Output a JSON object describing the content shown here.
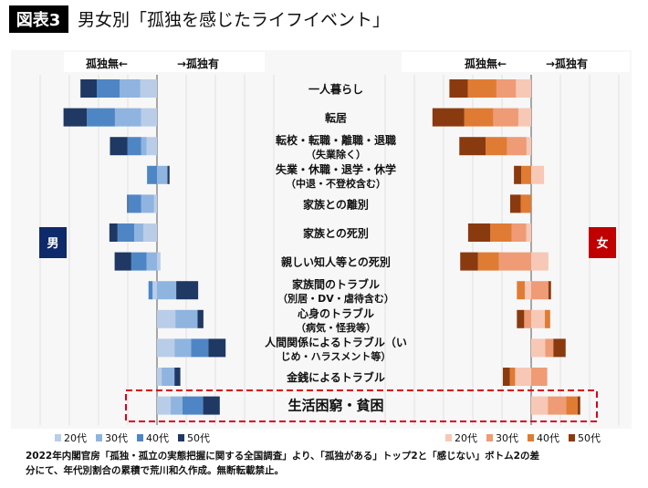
{
  "header": {
    "badge": "図表3",
    "title": "男女別「孤独を感じたライフイベント」"
  },
  "axis_headers": {
    "left": "孤独無←",
    "right": "→孤独有"
  },
  "gender_badges": {
    "male": "男",
    "female": "女"
  },
  "colors": {
    "male": [
      "#b9cde8",
      "#8fb4df",
      "#4e86c5",
      "#1f3864"
    ],
    "female": [
      "#f7c8b5",
      "#ee9b76",
      "#e07b34",
      "#8a3a0f"
    ],
    "male_badge": "#0e2a6b",
    "female_badge": "#c00000",
    "highlight": "#d9001b"
  },
  "footnote": [
    "2022年内閣官房「孤独・孤立の実態把握に関する全国調査」より、「孤独がある」トップ2と「感じない」ボトム2の差",
    "分にて、年代別割合の累積で荒川和久作成。無断転載禁止。"
  ],
  "chart_data": {
    "type": "bar",
    "subtype": "diverging-stacked-horizontal",
    "title": "男女別「孤独を感じたライフイベント」",
    "xlabel": "孤独無← / →孤独有",
    "grid": true,
    "xlim": [
      -40,
      40
    ],
    "highlighted_category": "生活困窮・貧困",
    "categories": [
      [
        "一人暮らし"
      ],
      [
        "転居"
      ],
      [
        "転校・転職・離職・退職",
        "（失業除く）"
      ],
      [
        "失業・休職・退学・休学",
        "（中退・不登校含む）"
      ],
      [
        "家族との離別"
      ],
      [
        "家族との死別"
      ],
      [
        "親しい知人等との死別"
      ],
      [
        "家族間のトラブル",
        "（別居・DV・虐待含む）"
      ],
      [
        "心身のトラブル",
        "（病気・怪我等）"
      ],
      [
        "人間関係によるトラブル（い",
        "じめ・ハラスメント等）"
      ],
      [
        "金銭によるトラブル"
      ],
      [
        "生活困窮・貧困"
      ]
    ],
    "legend": [
      "20代",
      "30代",
      "40代",
      "50代"
    ],
    "series_male": [
      {
        "name": "20代",
        "values": [
          -5.7,
          -5.4,
          -3.6,
          0,
          -1.0,
          -4.7,
          1.2,
          -1.5,
          6.3,
          6.0,
          1.6,
          4.7
        ]
      },
      {
        "name": "30代",
        "values": [
          -7.1,
          -9.0,
          -1.8,
          3.6,
          -4.4,
          -3.1,
          -3.6,
          6.6,
          7.6,
          5.7,
          4.4,
          4.0
        ]
      },
      {
        "name": "40代",
        "values": [
          -7.8,
          -9.6,
          -4.7,
          -3.4,
          -4.5,
          -5.7,
          -5.2,
          -1.4,
          0,
          5.9,
          0,
          7.1
        ]
      },
      {
        "name": "50代",
        "values": [
          -5.6,
          -8.0,
          -6.0,
          0.7,
          -0.3,
          -2.8,
          -5.7,
          7.5,
          2.0,
          5.9,
          2.0,
          5.7
        ]
      }
    ],
    "series_female": [
      {
        "name": "20代",
        "values": [
          -5.2,
          -4.4,
          -1.6,
          4.4,
          0,
          -1.7,
          5.9,
          -2.2,
          4.7,
          4.8,
          -5.5,
          5.7
        ]
      },
      {
        "name": "30代",
        "values": [
          -6.7,
          -8.6,
          -6.7,
          0,
          0,
          -5.0,
          -11.1,
          5.9,
          -2.4,
          2.8,
          5.5,
          6.3
        ]
      },
      {
        "name": "40代",
        "values": [
          -9.8,
          -9.9,
          -7.3,
          -3.4,
          -3.6,
          -7.3,
          -7.1,
          -2.7,
          1.8,
          0,
          -1.8,
          3.9
        ]
      },
      {
        "name": "50代",
        "values": [
          -6.3,
          -10.9,
          -9.0,
          -2.5,
          -3.6,
          -7.6,
          -6.1,
          0.9,
          -2.5,
          4.2,
          -2.4,
          0.9
        ]
      }
    ]
  }
}
